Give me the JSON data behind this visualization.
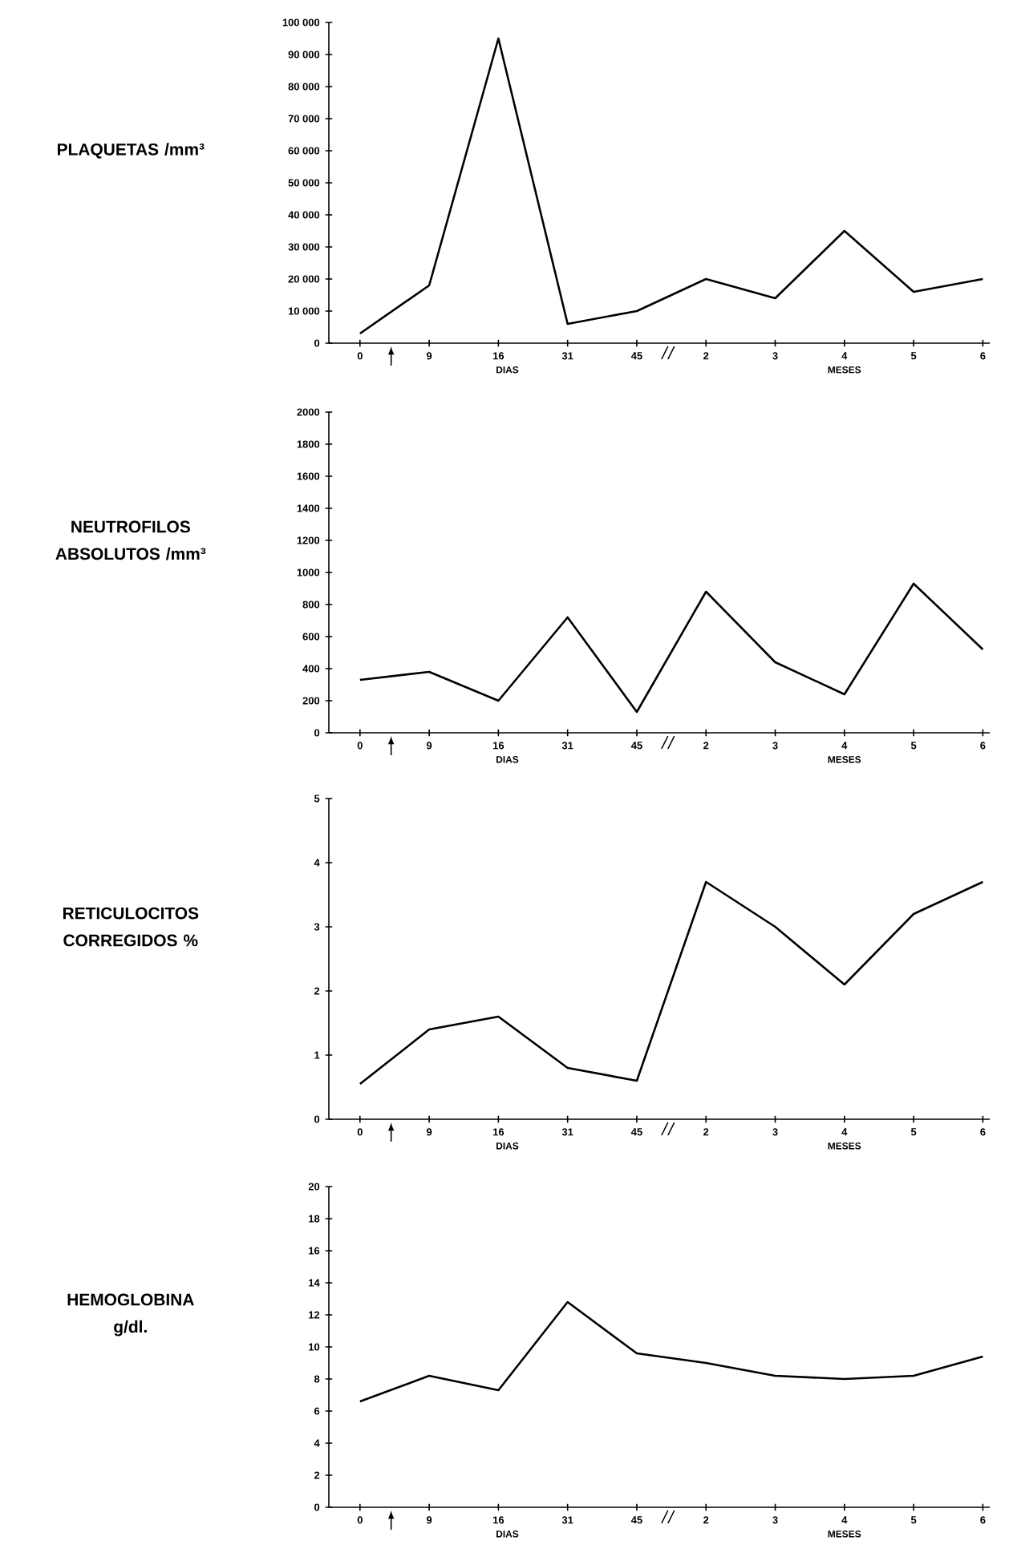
{
  "chart_data": [
    {
      "type": "line",
      "ylabel": "PLAQUETAS /mm³",
      "xlabel": "DIAS",
      "annotations": [
        "MESES"
      ],
      "categories": [
        "0",
        "9",
        "16",
        "31",
        "45",
        "2",
        "3",
        "4",
        "5",
        "6"
      ],
      "color": "#000000",
      "values": [
        3000,
        18000,
        95000,
        6000,
        10000,
        20000,
        14000,
        35000,
        16000,
        20000
      ],
      "ylim": [
        0,
        100000
      ],
      "yticks": [
        0,
        {
          "value": 10000,
          "label": "10 000"
        },
        {
          "value": 20000,
          "label": "20 000"
        },
        {
          "value": 30000,
          "label": "30 000"
        },
        {
          "value": 40000,
          "label": "40 000"
        },
        {
          "value": 50000,
          "label": "50 000"
        },
        {
          "value": 60000,
          "label": "60 000"
        },
        {
          "value": 70000,
          "label": "70 000"
        },
        {
          "value": 80000,
          "label": "80 000"
        },
        {
          "value": 90000,
          "label": "90 000"
        },
        {
          "value": 100000,
          "label": "100 000"
        }
      ]
    },
    {
      "type": "line",
      "ylabel": "NEUTROFILOS ABSOLUTOS /mm³",
      "xlabel": "DIAS",
      "annotations": [
        "MESES"
      ],
      "categories": [
        "0",
        "9",
        "16",
        "31",
        "45",
        "2",
        "3",
        "4",
        "5",
        "6"
      ],
      "color": "#000000",
      "values": [
        330,
        380,
        200,
        720,
        130,
        880,
        440,
        240,
        930,
        520
      ],
      "ylim": [
        0,
        2000
      ],
      "yticks": [
        0,
        200,
        400,
        600,
        800,
        1000,
        1200,
        1400,
        1600,
        1800,
        2000
      ]
    },
    {
      "type": "line",
      "ylabel": "RETICULOCITOS CORREGIDOS %",
      "xlabel": "DIAS",
      "annotations": [
        "MESES"
      ],
      "categories": [
        "0",
        "9",
        "16",
        "31",
        "45",
        "2",
        "3",
        "4",
        "5",
        "6"
      ],
      "color": "#000000",
      "values": [
        0.55,
        1.4,
        1.6,
        0.8,
        0.6,
        3.7,
        3.0,
        2.1,
        3.2,
        3.7
      ],
      "ylim": [
        0,
        5
      ],
      "yticks": [
        0,
        1,
        2,
        3,
        4,
        5
      ]
    },
    {
      "type": "line",
      "ylabel": "HEMOGLOBINA g/dl.",
      "xlabel": "DIAS",
      "annotations": [
        "MESES"
      ],
      "categories": [
        "0",
        "9",
        "16",
        "31",
        "45",
        "2",
        "3",
        "4",
        "5",
        "6"
      ],
      "color": "#000000",
      "values": [
        6.6,
        8.2,
        7.3,
        12.8,
        9.6,
        9.0,
        8.2,
        8.0,
        8.2,
        9.4
      ],
      "ylim": [
        0,
        20
      ],
      "yticks": [
        0,
        2,
        4,
        6,
        8,
        10,
        12,
        14,
        16,
        18,
        20
      ]
    }
  ]
}
